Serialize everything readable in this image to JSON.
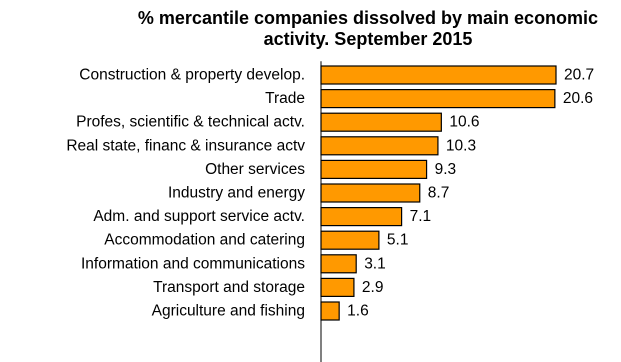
{
  "chart_data": {
    "type": "bar",
    "orientation": "horizontal",
    "title_line1": "% mercantile companies  dissolved by main economic",
    "title_line2": "activity. September 2015",
    "categories": [
      "Construction & property develop.",
      "Trade",
      "Profes, scientific & technical actv.",
      "Real state, financ & insurance actv",
      "Other services",
      "Industry and energy",
      "Adm. and support service actv.",
      "Accommodation and catering",
      "Information and communications",
      "Transport and storage",
      "Agriculture and fishing"
    ],
    "values": [
      20.7,
      20.6,
      10.6,
      10.3,
      9.3,
      8.7,
      7.1,
      5.1,
      3.1,
      2.9,
      1.6
    ],
    "value_labels": [
      "20.7",
      "20.6",
      "10.6",
      "10.3",
      "9.3",
      "8.7",
      "7.1",
      "5.1",
      "3.1",
      "2.9",
      "1.6"
    ],
    "bar_color": "#FF9900",
    "bar_edge_color": "#000000",
    "xlim": [
      0,
      22
    ],
    "grid": false,
    "legend": "none"
  }
}
